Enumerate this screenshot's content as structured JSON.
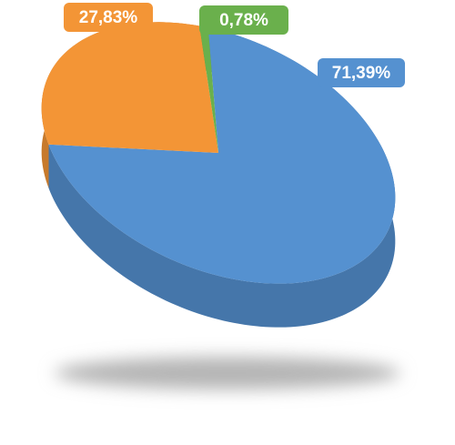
{
  "chart_data": {
    "type": "pie",
    "values": [
      71.39,
      27.83,
      0.78
    ],
    "value_labels": [
      "71,39%",
      "27,83%",
      "0,78%"
    ],
    "colors": [
      "#5591d0",
      "#f39536",
      "#6ab04c"
    ]
  }
}
